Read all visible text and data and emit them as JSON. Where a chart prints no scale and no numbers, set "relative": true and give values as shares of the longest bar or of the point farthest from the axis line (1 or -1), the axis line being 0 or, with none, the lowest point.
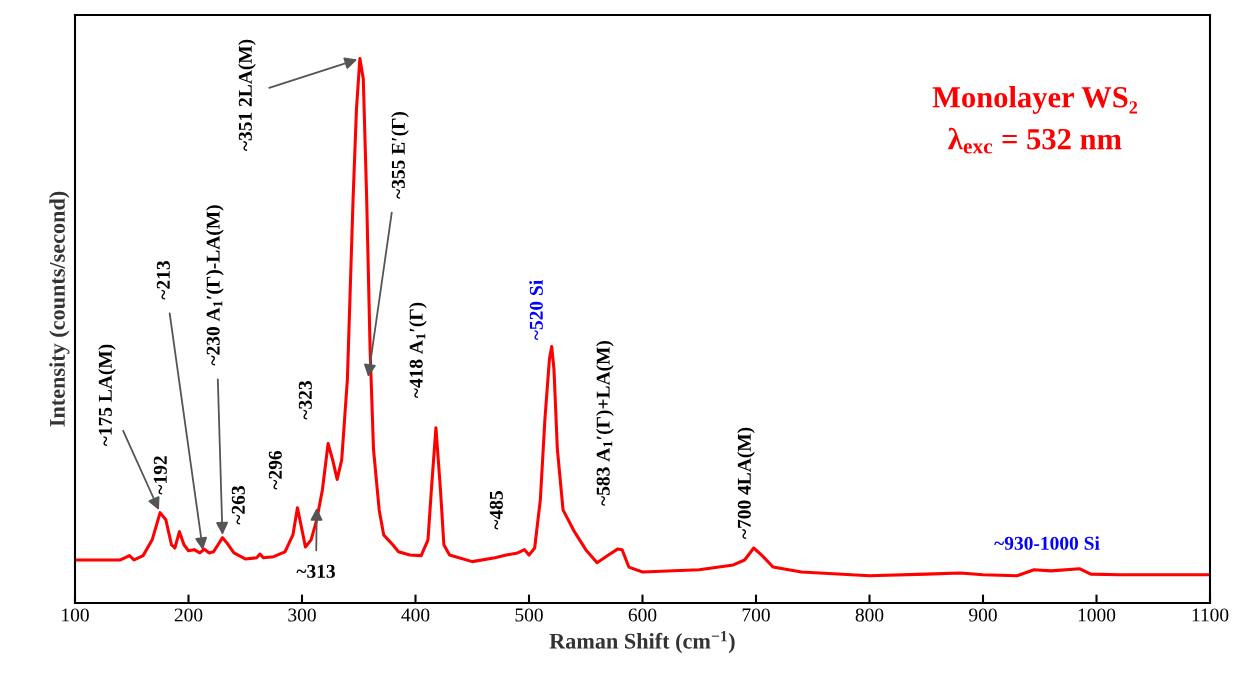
{
  "chart_data": {
    "type": "line",
    "relative": true,
    "xlabel": "Raman Shift (cm$^{−1}$)",
    "ylabel": "Intensity (counts/second)",
    "xlim": [
      100,
      1100
    ],
    "xticks": [
      100,
      200,
      300,
      400,
      500,
      600,
      700,
      800,
      900,
      1000,
      1100
    ],
    "grid": false,
    "legend": false,
    "marker": "none",
    "line_style": "solid",
    "series": [
      {
        "color": "#ff0000",
        "x": [
          100,
          140,
          148,
          152,
          160,
          168,
          175,
          180,
          185,
          188,
          192,
          196,
          200,
          205,
          210,
          214,
          218,
          222,
          226,
          230,
          234,
          240,
          250,
          260,
          263,
          266,
          275,
          285,
          292,
          296,
          300,
          303,
          308,
          313,
          318,
          323,
          327,
          331,
          335,
          340,
          345,
          348,
          351,
          354,
          357,
          360,
          363,
          368,
          372,
          376,
          380,
          385,
          395,
          405,
          411,
          414,
          418,
          422,
          425,
          430,
          450,
          470,
          480,
          490,
          496,
          500,
          505,
          510,
          514,
          518,
          520,
          522,
          525,
          530,
          540,
          550,
          560,
          570,
          578,
          582,
          588,
          600,
          650,
          680,
          690,
          698,
          705,
          715,
          740,
          800,
          850,
          880,
          900,
          930,
          945,
          960,
          985,
          995,
          1020,
          1060,
          1100
        ],
        "values": [
          0.079,
          0.079,
          0.087,
          0.079,
          0.087,
          0.116,
          0.166,
          0.153,
          0.107,
          0.101,
          0.131,
          0.107,
          0.096,
          0.098,
          0.092,
          0.099,
          0.092,
          0.094,
          0.107,
          0.12,
          0.11,
          0.092,
          0.081,
          0.083,
          0.09,
          0.083,
          0.085,
          0.094,
          0.125,
          0.175,
          0.134,
          0.103,
          0.116,
          0.153,
          0.208,
          0.293,
          0.263,
          0.227,
          0.263,
          0.411,
          0.742,
          0.908,
          1.0,
          0.963,
          0.742,
          0.466,
          0.282,
          0.171,
          0.125,
          0.116,
          0.107,
          0.094,
          0.088,
          0.087,
          0.116,
          0.208,
          0.322,
          0.208,
          0.107,
          0.088,
          0.076,
          0.083,
          0.088,
          0.092,
          0.098,
          0.088,
          0.101,
          0.19,
          0.337,
          0.448,
          0.471,
          0.429,
          0.282,
          0.171,
          0.131,
          0.098,
          0.074,
          0.088,
          0.099,
          0.098,
          0.066,
          0.057,
          0.061,
          0.07,
          0.079,
          0.101,
          0.088,
          0.066,
          0.057,
          0.05,
          0.053,
          0.055,
          0.052,
          0.05,
          0.061,
          0.059,
          0.063,
          0.053,
          0.052,
          0.052,
          0.052
        ]
      }
    ],
    "annotations": [
      {
        "text": "~175 LA(M)",
        "x": 175,
        "y": 0.166
      },
      {
        "text": "~192",
        "x": 192,
        "y": 0.131
      },
      {
        "text": "~213",
        "x": 213,
        "y": 0.092
      },
      {
        "text": "~230 A$_{1}$′(Γ)-LA(M)",
        "x": 230,
        "y": 0.12
      },
      {
        "text": "~263",
        "x": 263,
        "y": 0.09
      },
      {
        "text": "~296",
        "x": 296,
        "y": 0.175
      },
      {
        "text": "~313",
        "x": 313,
        "y": 0.18
      },
      {
        "text": "~323",
        "x": 323,
        "y": 0.293
      },
      {
        "text": "~351 2LA(M)",
        "x": 351,
        "y": 1.0
      },
      {
        "text": "~355 E′(Γ)",
        "x": 358,
        "y": 0.41
      },
      {
        "text": "~418 A$_{1}$′(Γ)",
        "x": 418,
        "y": 0.322
      },
      {
        "text": "~485",
        "x": 485,
        "y": 0.092
      },
      {
        "text": "~520 Si",
        "x": 520,
        "y": 0.471
      },
      {
        "text": "~583 A$_{1}$′(Γ)+LA(M)",
        "x": 583,
        "y": 0.098
      },
      {
        "text": "~700 4LA(M)",
        "x": 698,
        "y": 0.101
      },
      {
        "text": "~930-1000 Si",
        "x": 965,
        "y": 0.061
      },
      "Monolayer WS₂",
      "λ$_{exc}$ = 532 nm"
    ]
  }
}
